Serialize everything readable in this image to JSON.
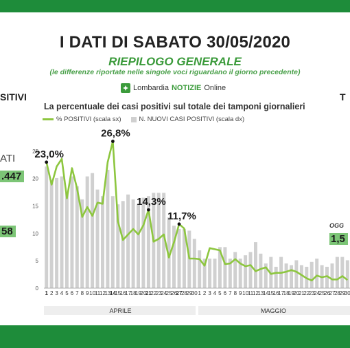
{
  "header": {
    "title": "I DATI DI SABATO 30/05/2020",
    "subtitle": "RIEPILOGO GENERALE",
    "note": "(le differenze riportate nelle singole voci riguardano il giorno precedente)",
    "brand_prefix": "Lombardia",
    "brand_name": "NOTIZIE",
    "brand_suffix": "Online"
  },
  "side_left": {
    "label_1": "SITIVI",
    "label_2": "ATI",
    "value_1": ".447",
    "value_2": "58"
  },
  "side_right": {
    "label_1": "T",
    "label_2": "OGG",
    "value_1": "1,5"
  },
  "colors": {
    "band": "#1e8c3a",
    "line": "#8dc63f",
    "bar": "#d0d0d0",
    "accent": "#3a9a3a"
  },
  "chart_data": {
    "type": "bar+line",
    "title": "La percentuale dei casi positivi sul totale dei tamponi giornalieri",
    "legend": [
      {
        "name": "% POSITIVI (scala sx)",
        "style": "line",
        "color": "#8dc63f"
      },
      {
        "name": "N. NUOVI CASI POSITIVI (scala dx)",
        "style": "bar",
        "color": "#d0d0d0"
      }
    ],
    "y_left": {
      "ticks": [
        0,
        5,
        10,
        15,
        20,
        25
      ],
      "ylim": [
        0,
        30
      ]
    },
    "months": [
      "APRILE",
      "MAGGIO"
    ],
    "x_labels": [
      "1",
      "2",
      "3",
      "4",
      "5",
      "6",
      "7",
      "8",
      "9",
      "10",
      "11",
      "12",
      "13",
      "14",
      "15",
      "16",
      "17",
      "18",
      "19",
      "20",
      "21",
      "22",
      "23",
      "24",
      "25",
      "26",
      "27",
      "28",
      "29",
      "30",
      "1",
      "2",
      "3",
      "4",
      "5",
      "6",
      "7",
      "8",
      "9",
      "10",
      "11",
      "12",
      "13",
      "14",
      "15",
      "16",
      "17",
      "18",
      "19",
      "20",
      "21",
      "22",
      "23",
      "24",
      "25",
      "26",
      "27",
      "28",
      "29",
      "30"
    ],
    "bold_labels": [
      "1",
      "14",
      "21",
      "27"
    ],
    "pct_positive": [
      23.0,
      18.9,
      22.2,
      23.6,
      16.4,
      21.9,
      18.2,
      13.0,
      14.8,
      13.2,
      15.6,
      15.4,
      23.0,
      26.8,
      12.2,
      8.8,
      9.8,
      10.8,
      9.8,
      11.5,
      14.3,
      8.5,
      9.0,
      9.8,
      5.6,
      8.4,
      11.7,
      10.9,
      5.4,
      5.4,
      5.3,
      4.1,
      7.3,
      7.1,
      6.9,
      4.4,
      4.5,
      5.3,
      4.5,
      4.0,
      4.2,
      3.1,
      3.5,
      3.8,
      2.6,
      2.8,
      2.8,
      3.0,
      3.3,
      3.0,
      2.4,
      1.8,
      1.4,
      2.3,
      2.0,
      2.2,
      1.6,
      1.6,
      2.2,
      1.5
    ],
    "new_cases_relative": [
      0.74,
      0.66,
      0.67,
      0.68,
      0.58,
      0.68,
      0.62,
      0.54,
      0.68,
      0.7,
      0.6,
      0.56,
      0.72,
      0.56,
      0.51,
      0.53,
      0.57,
      0.54,
      0.51,
      0.55,
      0.56,
      0.58,
      0.58,
      0.58,
      0.43,
      0.38,
      0.36,
      0.36,
      0.35,
      0.3,
      0.23,
      0.18,
      0.18,
      0.18,
      0.25,
      0.25,
      0.18,
      0.22,
      0.18,
      0.2,
      0.22,
      0.28,
      0.21,
      0.15,
      0.19,
      0.13,
      0.19,
      0.15,
      0.14,
      0.17,
      0.14,
      0.13,
      0.16,
      0.18,
      0.14,
      0.13,
      0.15,
      0.19,
      0.19,
      0.17
    ],
    "annotations": [
      {
        "index": 0,
        "text": "23,0%"
      },
      {
        "index": 13,
        "text": "26,8%"
      },
      {
        "index": 20,
        "text": "14,3%"
      },
      {
        "index": 26,
        "text": "11,7%"
      }
    ]
  }
}
